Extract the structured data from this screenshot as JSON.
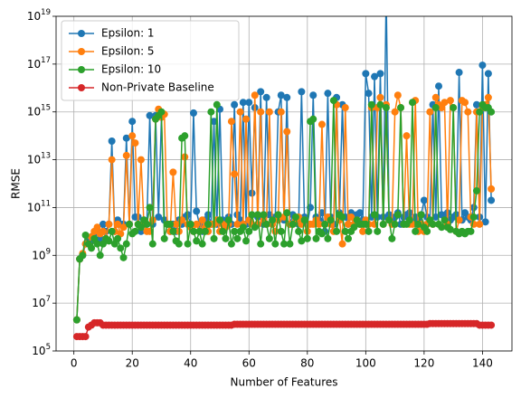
{
  "chart_data": {
    "type": "line",
    "xlabel": "Number of Features",
    "ylabel": "RMSE",
    "x": [
      1,
      2,
      3,
      4,
      5,
      6,
      7,
      8,
      9,
      10,
      11,
      12,
      13,
      14,
      15,
      16,
      17,
      18,
      19,
      20,
      21,
      22,
      23,
      24,
      25,
      26,
      27,
      28,
      29,
      30,
      31,
      32,
      33,
      34,
      35,
      36,
      37,
      38,
      39,
      40,
      41,
      42,
      43,
      44,
      45,
      46,
      47,
      48,
      49,
      50,
      51,
      52,
      53,
      54,
      55,
      56,
      57,
      58,
      59,
      60,
      61,
      62,
      63,
      64,
      65,
      66,
      67,
      68,
      69,
      70,
      71,
      72,
      73,
      74,
      75,
      76,
      77,
      78,
      79,
      80,
      81,
      82,
      83,
      84,
      85,
      86,
      87,
      88,
      89,
      90,
      91,
      92,
      93,
      94,
      95,
      96,
      97,
      98,
      99,
      100,
      101,
      102,
      103,
      104,
      105,
      106,
      107,
      108,
      109,
      110,
      111,
      112,
      113,
      114,
      115,
      116,
      117,
      118,
      119,
      120,
      121,
      122,
      123,
      124,
      125,
      126,
      127,
      128,
      129,
      130,
      131,
      132,
      133,
      134,
      135,
      136,
      137,
      138,
      139,
      140,
      141,
      142,
      143
    ],
    "series": [
      {
        "name": "Epsilon: 1",
        "color": "#1f77b4",
        "values": [
          2000000.0,
          700000000.0,
          1000000000.0,
          3000000000.0,
          5000000000.0,
          4000000000.0,
          8000000000.0,
          10000000000.0,
          5000000000.0,
          20000000000.0,
          10000000000.0,
          20000000000.0,
          60000000000000.0,
          10000000000.0,
          30000000000.0,
          20000000000.0,
          20000000000.0,
          80000000000000.0,
          20000000000.0,
          400000000000000.0,
          40000000000.0,
          40000000000.0,
          10000000000.0,
          30000000000.0,
          20000000000.0,
          700000000000000.0,
          20000000000.0,
          700000000000000.0,
          40000000000.0,
          600000000000000.0,
          30000000000.0,
          20000000000.0,
          10000000000.0,
          20000000000.0,
          10000000000.0,
          30000000000.0,
          20000000000.0,
          40000000000.0,
          50000000000.0,
          20000000000.0,
          900000000000000.0,
          70000000000.0,
          20000000000.0,
          10000000000.0,
          30000000000.0,
          50000000000.0,
          20000000000.0,
          400000000000000.0,
          20000000000.0,
          1300000000000000.0,
          30000000000.0,
          20000000000.0,
          40000000000.0,
          20000000000.0,
          2000000000000000.0,
          50000000000.0,
          30000000000.0,
          2500000000000000.0,
          20000000000.0,
          2500000000000000.0,
          400000000000.0,
          1500000000000000.0,
          40000000000.0,
          7000000000000000.0,
          20000000000.0,
          4000000000000000.0,
          50000000000.0,
          30000000000.0,
          40000000000.0,
          1000000000000000.0,
          5000000000000000.0,
          30000000000.0,
          4000000000000000.0,
          20000000000.0,
          50000000000.0,
          30000000000.0,
          20000000000.0,
          7000000000000000.0,
          40000000000.0,
          20000000000.0,
          100000000000.0,
          5000000000000000.0,
          40000000000.0,
          30000000000.0,
          60000000000.0,
          10000000000.0,
          6000000000000000.0,
          40000000000.0,
          20000000000.0,
          4000000000000000.0,
          60000000000.0,
          2000000000000000.0,
          40000000000.0,
          20000000000.0,
          60000000000.0,
          20000000000.0,
          50000000000.0,
          60000000000.0,
          30000000000.0,
          4e+16,
          6000000000000000.0,
          40000000000.0,
          3e+16,
          40000000000.0,
          4e+16,
          40000000000.0,
          1e+20,
          50000000000.0,
          30000000000.0,
          40000000000.0,
          60000000000.0,
          20000000000.0,
          40000000000.0,
          50000000000.0,
          60000000000.0,
          30000000000.0,
          40000000000.0,
          30000000000.0,
          50000000000.0,
          200000000000.0,
          40000000000.0,
          30000000000.0,
          2000000000000000.0,
          40000000000.0,
          1.2e+16,
          50000000000.0,
          40000000000.0,
          60000000000.0,
          30000000000.0,
          40000000000.0,
          50000000000.0,
          4.5e+16,
          30000000000.0,
          60000000000.0,
          40000000000.0,
          30000000000.0,
          100000000000.0,
          2000000000000000.0,
          40000000000.0,
          9e+16,
          25000000000.0,
          4e+16,
          200000000000.0
        ]
      },
      {
        "name": "Epsilon: 5",
        "color": "#ff7f0e",
        "values": [
          2000000.0,
          700000000.0,
          1200000000.0,
          3000000000.0,
          3000000000.0,
          6000000000.0,
          10000000000.0,
          15000000000.0,
          8000000000.0,
          10000000000.0,
          5000000000.0,
          20000000000.0,
          10000000000000.0,
          10000000000.0,
          20000000000.0,
          8000000000.0,
          15000000000.0,
          15000000000000.0,
          20000000000.0,
          100000000000000.0,
          50000000000000.0,
          20000000000.0,
          10000000000000.0,
          20000000000.0,
          10000000000.0,
          10000000000.0,
          30000000000.0,
          500000000000000.0,
          1300000000000000.0,
          600000000000000.0,
          800000000000000.0,
          20000000000.0,
          10000000000.0,
          3000000000000.0,
          20000000000.0,
          10000000000.0,
          30000000000.0,
          13000000000000.0,
          20000000000.0,
          15000000000.0,
          10000000000.0,
          20000000000.0,
          10000000000.0,
          30000000000.0,
          15000000000.0,
          10000000000.0,
          20000000000.0,
          20000000000.0,
          30000000000.0,
          10000000000.0,
          20000000000.0,
          15000000000.0,
          20000000000.0,
          400000000000000.0,
          2500000000000.0,
          20000000000.0,
          1000000000000000.0,
          20000000000.0,
          500000000000000.0,
          30000000000.0,
          20000000000.0,
          5000000000000000.0,
          20000000000.0,
          1000000000000000.0,
          30000000000.0,
          20000000000.0,
          1000000000000000.0,
          20000000000.0,
          10000000000.0,
          30000000000.0,
          1000000000000000.0,
          40000000000.0,
          150000000000000.0,
          20000000000.0,
          20000000000.0,
          30000000000.0,
          40000000000.0,
          20000000000.0,
          30000000000.0,
          10000000000.0,
          20000000000.0,
          20000000000.0,
          30000000000.0,
          20000000000.0,
          300000000000000.0,
          20000000000.0,
          40000000000.0,
          20000000000.0,
          10000000000.0,
          2000000000000000.0,
          30000000000.0,
          3000000000.0,
          1500000000000000.0,
          20000000000.0,
          40000000000.0,
          20000000000.0,
          30000000000.0,
          20000000000.0,
          10000000000.0,
          30000000000.0,
          20000000000.0,
          1500000000000000.0,
          20000000000.0,
          1500000000000000.0,
          4000000000000000.0,
          20000000000.0,
          2000000000000000.0,
          30000000000.0,
          20000000000.0,
          1000000000000000.0,
          5000000000000000.0,
          1500000000000000.0,
          20000000000.0,
          100000000000000.0,
          20000000000.0,
          20000000000.0,
          3000000000000000.0,
          10000000000.0,
          20000000000.0,
          10000000000.0,
          20000000000.0,
          1000000000000000.0,
          20000000000.0,
          4000000000000000.0,
          2000000000000000.0,
          1500000000000000.0,
          2500000000000000.0,
          20000000000.0,
          3000000000000000.0,
          1500000000000000.0,
          10000000000.0,
          30000000000.0,
          3000000000000000.0,
          2500000000000000.0,
          1000000000000000.0,
          40000000000.0,
          20000000000.0,
          1000000000000000.0,
          20000000000.0,
          1500000000000000.0,
          2000000000000000.0,
          4000000000000000.0,
          600000000000.0
        ]
      },
      {
        "name": "Epsilon: 10",
        "color": "#2ca02c",
        "values": [
          2000000.0,
          700000000.0,
          1000000000.0,
          7000000000.0,
          3000000000.0,
          2000000000.0,
          5000000000.0,
          3000000000.0,
          1000000000.0,
          3000000000.0,
          5000000000.0,
          4000000000.0,
          10000000000.0,
          3000000000.0,
          5000000000.0,
          2000000000.0,
          800000000.0,
          3000000000.0,
          20000000000.0,
          8000000000.0,
          10000000000.0,
          20000000000.0,
          15000000000.0,
          30000000000.0,
          20000000000.0,
          100000000000.0,
          3000000000.0,
          500000000000000.0,
          700000000000000.0,
          1000000000000000.0,
          5000000000.0,
          20000000000.0,
          20000000000.0,
          10000000000.0,
          4000000000.0,
          3000000000.0,
          80000000000000.0,
          100000000000000.0,
          3000000000.0,
          20000000000.0,
          10000000000.0,
          4000000000.0,
          10000000000.0,
          3000000000.0,
          10000000000.0,
          20000000000.0,
          1000000000000000.0,
          5000000000.0,
          2000000000000000.0,
          30000000000.0,
          10000000000.0,
          5000000000.0,
          30000000000.0,
          3000000000.0,
          10000000000.0,
          5000000000.0,
          10000000000.0,
          15000000000.0,
          4000000000.0,
          10000000000.0,
          50000000000.0,
          15000000000.0,
          50000000000.0,
          3000000000.0,
          50000000000.0,
          20000000000.0,
          5000000000.0,
          30000000000.0,
          3000000000.0,
          50000000000.0,
          10000000000.0,
          3000000000.0,
          60000000000.0,
          3000000000.0,
          20000000000.0,
          40000000000.0,
          10000000000.0,
          4000000000.0,
          30000000000.0,
          5000000000.0,
          400000000000000.0,
          500000000000000.0,
          5000000000.0,
          10000000000.0,
          8000000000.0,
          20000000000.0,
          5000000000.0,
          30000000000.0,
          3000000000000000.0,
          10000000000.0,
          50000000000.0,
          40000000000.0,
          10000000000.0,
          5000000000.0,
          10000000000.0,
          15000000000.0,
          30000000000.0,
          20000000000.0,
          20000000000.0,
          20000000000.0,
          10000000000.0,
          2000000000000000.0,
          50000000000.0,
          10000000000.0,
          2000000000000000.0,
          20000000000.0,
          1500000000000000.0,
          30000000000.0,
          5000000000.0,
          20000000000.0,
          50000000000.0,
          1500000000000000.0,
          20000000000.0,
          20000000000.0,
          30000000000.0,
          2500000000000000.0,
          10000000000.0,
          20000000000.0,
          50000000000.0,
          15000000000.0,
          10000000000.0,
          30000000000.0,
          20000000000.0,
          1500000000000000.0,
          20000000000.0,
          15000000000.0,
          30000000000.0,
          15000000000.0,
          12000000000.0,
          1500000000000000.0,
          10000000000.0,
          8000000000.0,
          10000000000.0,
          8000000000.0,
          10000000000.0,
          10000000000.0,
          40000000000.0,
          500000000000.0,
          1000000000000000.0,
          2000000000000000.0,
          1500000000000000.0,
          1500000000000000.0,
          1000000000000000.0
        ]
      },
      {
        "name": "Non-Private Baseline",
        "color": "#d62728",
        "values": [
          400000.0,
          400000.0,
          400000.0,
          400000.0,
          1000000.0,
          1200000.0,
          1500000.0,
          1500000.0,
          1500000.0,
          1200000.0,
          1200000.0,
          1200000.0,
          1200000.0,
          1200000.0,
          1200000.0,
          1200000.0,
          1200000.0,
          1200000.0,
          1200000.0,
          1200000.0,
          1200000.0,
          1200000.0,
          1200000.0,
          1200000.0,
          1200000.0,
          1200000.0,
          1200000.0,
          1200000.0,
          1200000.0,
          1200000.0,
          1200000.0,
          1200000.0,
          1200000.0,
          1200000.0,
          1200000.0,
          1200000.0,
          1200000.0,
          1200000.0,
          1200000.0,
          1200000.0,
          1200000.0,
          1200000.0,
          1200000.0,
          1200000.0,
          1200000.0,
          1200000.0,
          1200000.0,
          1200000.0,
          1200000.0,
          1200000.0,
          1200000.0,
          1200000.0,
          1200000.0,
          1200000.0,
          1300000.0,
          1300000.0,
          1300000.0,
          1300000.0,
          1300000.0,
          1300000.0,
          1300000.0,
          1300000.0,
          1300000.0,
          1300000.0,
          1300000.0,
          1300000.0,
          1300000.0,
          1300000.0,
          1300000.0,
          1300000.0,
          1300000.0,
          1300000.0,
          1300000.0,
          1300000.0,
          1300000.0,
          1300000.0,
          1300000.0,
          1300000.0,
          1300000.0,
          1300000.0,
          1300000.0,
          1300000.0,
          1300000.0,
          1300000.0,
          1300000.0,
          1300000.0,
          1300000.0,
          1300000.0,
          1300000.0,
          1300000.0,
          1300000.0,
          1300000.0,
          1300000.0,
          1300000.0,
          1300000.0,
          1300000.0,
          1300000.0,
          1300000.0,
          1300000.0,
          1300000.0,
          1300000.0,
          1300000.0,
          1300000.0,
          1300000.0,
          1300000.0,
          1300000.0,
          1300000.0,
          1300000.0,
          1300000.0,
          1300000.0,
          1300000.0,
          1300000.0,
          1300000.0,
          1300000.0,
          1300000.0,
          1300000.0,
          1300000.0,
          1300000.0,
          1300000.0,
          1300000.0,
          1300000.0,
          1400000.0,
          1400000.0,
          1400000.0,
          1400000.0,
          1400000.0,
          1400000.0,
          1400000.0,
          1400000.0,
          1400000.0,
          1400000.0,
          1400000.0,
          1400000.0,
          1400000.0,
          1400000.0,
          1400000.0,
          1400000.0,
          1400000.0,
          1200000.0,
          1200000.0,
          1200000.0,
          1200000.0,
          1200000.0
        ]
      }
    ],
    "xlim": [
      -6.1,
      150.1
    ],
    "xticks": [
      0,
      20,
      40,
      60,
      80,
      100,
      120,
      140
    ],
    "ylim": [
      100000.0,
      1e+19
    ],
    "log_y": true,
    "yticks": [
      {
        "value": 100000.0,
        "label": "10^5"
      },
      {
        "value": 10000000.0,
        "label": "10^7"
      },
      {
        "value": 1000000000.0,
        "label": "10^9"
      },
      {
        "value": 100000000000.0,
        "label": "10^11"
      },
      {
        "value": 10000000000000.0,
        "label": "10^13"
      },
      {
        "value": 1000000000000000.0,
        "label": "10^15"
      },
      {
        "value": 1e+17,
        "label": "10^17"
      },
      {
        "value": 1e+19,
        "label": "10^19"
      }
    ],
    "grid": true,
    "legend": "upper left"
  }
}
